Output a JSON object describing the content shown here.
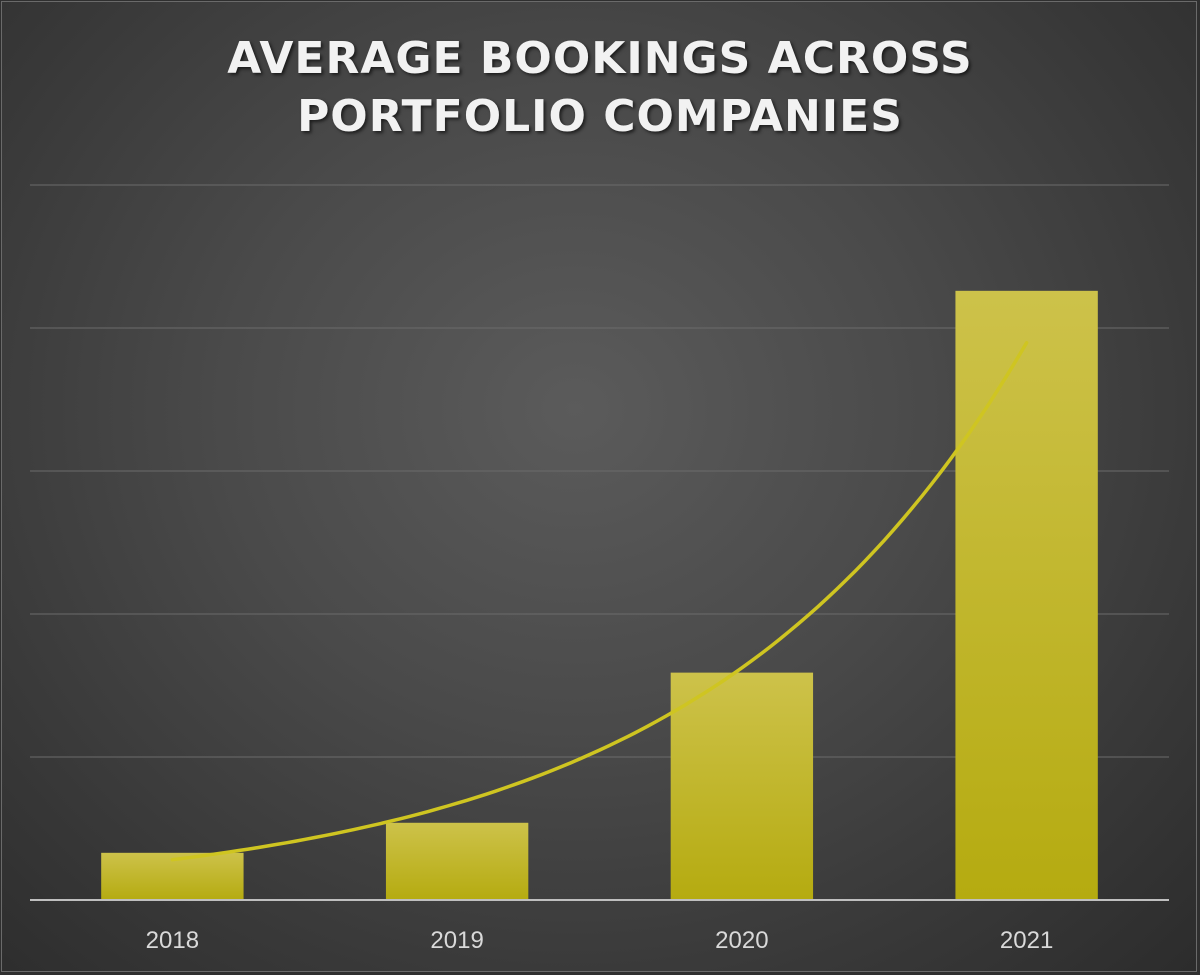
{
  "chart_data": {
    "type": "bar",
    "title_lines": [
      "AVERAGE BOOKINGS ACROSS",
      "PORTFOLIO COMPANIES"
    ],
    "categories": [
      "2018",
      "2019",
      "2020",
      "2021"
    ],
    "values": [
      0.33,
      0.54,
      1.59,
      4.26
    ],
    "ylim": [
      0,
      5
    ],
    "grid": true,
    "trendline": "exponential",
    "colors": {
      "bar_top": "#cdc24a",
      "bar_bottom": "#b5ab10",
      "trend": "#cfc521",
      "grid": "#6b6b6b",
      "axis": "#bfbfbf"
    }
  }
}
